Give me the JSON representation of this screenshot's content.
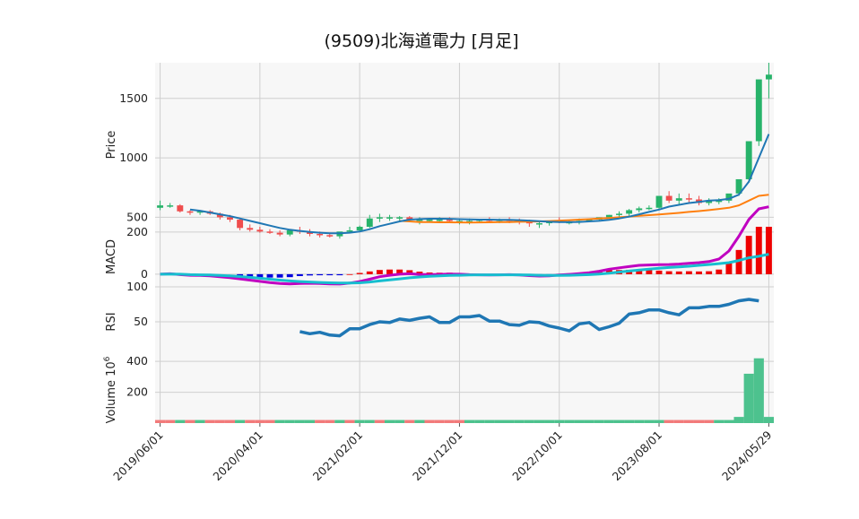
{
  "chart_data": {
    "type": "candlestick",
    "title": "(9509)北海道電力  [月足]",
    "x_tick_labels": [
      "2019/06/01",
      "2020/04/01",
      "2021/02/01",
      "2021/12/01",
      "2022/10/01",
      "2023/08/01",
      "2024/05/29"
    ],
    "grid": true,
    "colors": {
      "up": "#27b36a",
      "down": "#ef4d4d",
      "ma_short": "#1f77b4",
      "ma_long": "#ff7f0e",
      "macd": "#c000c0",
      "signal": "#17becf",
      "hist_pos": "#ee0000",
      "hist_neg": "#0000dd",
      "rsi": "#1f77b4",
      "vol_up": "#4dc28e",
      "vol_down": "#f27a7a",
      "panel_bg": "#f7f7f7",
      "grid": "#cfcfcf"
    },
    "panels": [
      {
        "id": "price",
        "ylabel": "Price",
        "yticks": [
          500,
          1000,
          1500
        ],
        "ylim": [
          420,
          1800
        ]
      },
      {
        "id": "macd",
        "ylabel": "MACD",
        "yticks": [
          0,
          200
        ],
        "ylim": [
          -60,
          225
        ]
      },
      {
        "id": "rsi",
        "ylabel": "RSI",
        "yticks": [
          50,
          100
        ],
        "ylim": [
          0,
          100
        ]
      },
      {
        "id": "volume",
        "ylabel": "Volume",
        "ylabel_exp": "6",
        "yticks": [
          200,
          400
        ],
        "ylim": [
          0,
          430
        ]
      }
    ],
    "ohlc": {
      "open": [
        580,
        600,
        600,
        550,
        545,
        550,
        530,
        500,
        480,
        410,
        395,
        380,
        370,
        355,
        390,
        380,
        360,
        350,
        340,
        380,
        390,
        420,
        490,
        500,
        500,
        500,
        480,
        480,
        480,
        480,
        470,
        470,
        470,
        480,
        470,
        480,
        470,
        460,
        450,
        450,
        470,
        460,
        460,
        470,
        480,
        500,
        520,
        530,
        560,
        575,
        580,
        680,
        640,
        660,
        650,
        620,
        640,
        640,
        700,
        820,
        1140,
        1660
      ],
      "high": [
        640,
        620,
        610,
        560,
        560,
        560,
        540,
        520,
        490,
        440,
        420,
        400,
        390,
        380,
        420,
        400,
        380,
        370,
        360,
        420,
        430,
        520,
        530,
        520,
        510,
        510,
        500,
        490,
        500,
        500,
        490,
        490,
        480,
        500,
        490,
        500,
        490,
        480,
        470,
        470,
        500,
        480,
        490,
        490,
        500,
        520,
        550,
        570,
        590,
        600,
        620,
        720,
        700,
        700,
        680,
        660,
        660,
        670,
        800,
        1000,
        1300,
        1800
      ],
      "low": [
        560,
        580,
        540,
        520,
        520,
        520,
        480,
        460,
        390,
        380,
        370,
        360,
        340,
        340,
        360,
        340,
        330,
        330,
        320,
        370,
        380,
        410,
        460,
        470,
        470,
        470,
        440,
        460,
        460,
        460,
        440,
        440,
        450,
        460,
        450,
        450,
        440,
        420,
        410,
        430,
        450,
        440,
        440,
        460,
        470,
        490,
        500,
        510,
        540,
        560,
        560,
        620,
        610,
        620,
        600,
        600,
        610,
        620,
        680,
        790,
        1100,
        1500
      ],
      "close": [
        600,
        600,
        550,
        545,
        550,
        530,
        500,
        480,
        410,
        395,
        380,
        370,
        355,
        390,
        380,
        360,
        350,
        340,
        380,
        390,
        420,
        490,
        500,
        500,
        500,
        480,
        480,
        480,
        480,
        470,
        470,
        470,
        480,
        470,
        480,
        470,
        460,
        450,
        450,
        470,
        460,
        460,
        470,
        480,
        500,
        520,
        530,
        560,
        575,
        580,
        680,
        640,
        660,
        650,
        620,
        640,
        640,
        700,
        820,
        1140,
        1660,
        1700
      ]
    },
    "ma_short": [
      null,
      null,
      null,
      565,
      555,
      540,
      525,
      510,
      490,
      470,
      450,
      430,
      410,
      395,
      385,
      377,
      370,
      365,
      365,
      370,
      380,
      400,
      425,
      445,
      465,
      480,
      485,
      488,
      488,
      487,
      484,
      482,
      480,
      480,
      479,
      479,
      476,
      472,
      467,
      462,
      460,
      460,
      461,
      465,
      470,
      478,
      490,
      505,
      525,
      545,
      565,
      590,
      605,
      620,
      630,
      640,
      645,
      655,
      690,
      800,
      1000,
      1200
    ],
    "ma_long": [
      null,
      null,
      null,
      null,
      null,
      null,
      null,
      null,
      null,
      null,
      null,
      null,
      null,
      null,
      null,
      null,
      null,
      null,
      null,
      null,
      null,
      null,
      null,
      null,
      470,
      465,
      460,
      460,
      458,
      458,
      457,
      456,
      457,
      458,
      459,
      460,
      462,
      463,
      465,
      468,
      472,
      476,
      480,
      484,
      489,
      494,
      500,
      506,
      512,
      518,
      524,
      530,
      537,
      545,
      552,
      560,
      570,
      580,
      600,
      640,
      680,
      690
    ],
    "macd": [
      0,
      2,
      -2,
      -5,
      -6,
      -8,
      -12,
      -16,
      -22,
      -28,
      -34,
      -40,
      -44,
      -46,
      -44,
      -43,
      -44,
      -46,
      -47,
      -42,
      -35,
      -24,
      -12,
      -5,
      0,
      2,
      -1,
      -2,
      -1,
      1,
      0,
      -2,
      -3,
      -4,
      -3,
      -2,
      -4,
      -7,
      -9,
      -8,
      -4,
      -1,
      3,
      7,
      14,
      24,
      30,
      36,
      42,
      44,
      45,
      46,
      48,
      52,
      55,
      60,
      72,
      110,
      180,
      260,
      310,
      320
    ],
    "signal": [
      0,
      1,
      0,
      -2,
      -3,
      -4,
      -6,
      -8,
      -11,
      -15,
      -19,
      -24,
      -28,
      -32,
      -35,
      -37,
      -39,
      -41,
      -42,
      -42,
      -41,
      -37,
      -32,
      -27,
      -22,
      -17,
      -13,
      -10,
      -8,
      -6,
      -5,
      -4,
      -3,
      -3,
      -3,
      -3,
      -3,
      -4,
      -5,
      -6,
      -6,
      -5,
      -4,
      -2,
      1,
      5,
      10,
      15,
      20,
      24,
      28,
      32,
      35,
      38,
      42,
      46,
      50,
      55,
      65,
      78,
      85,
      95
    ],
    "macd_hist_start": 8,
    "rsi_start": 14,
    "rsi": [
      36,
      33,
      35,
      31,
      30,
      40,
      40,
      46,
      50,
      49,
      54,
      52,
      55,
      57,
      49,
      49,
      57,
      57,
      59,
      51,
      51,
      46,
      45,
      50,
      49,
      44,
      41,
      37,
      47,
      49,
      39,
      43,
      48,
      61,
      63,
      67,
      67,
      63,
      60,
      70,
      70,
      72,
      72,
      75,
      80,
      82,
      80
    ],
    "volume_signed": [
      -20,
      -20,
      20,
      -20,
      20,
      -20,
      -20,
      -20,
      20,
      -20,
      -20,
      -20,
      20,
      20,
      20,
      20,
      -20,
      -20,
      20,
      -20,
      20,
      20,
      -20,
      20,
      20,
      -20,
      20,
      -20,
      -20,
      -20,
      -20,
      20,
      20,
      20,
      20,
      20,
      20,
      20,
      20,
      20,
      20,
      20,
      20,
      20,
      20,
      20,
      20,
      20,
      20,
      20,
      20,
      -20,
      -20,
      -20,
      -20,
      -20,
      20,
      20,
      40,
      320,
      420,
      40
    ]
  }
}
